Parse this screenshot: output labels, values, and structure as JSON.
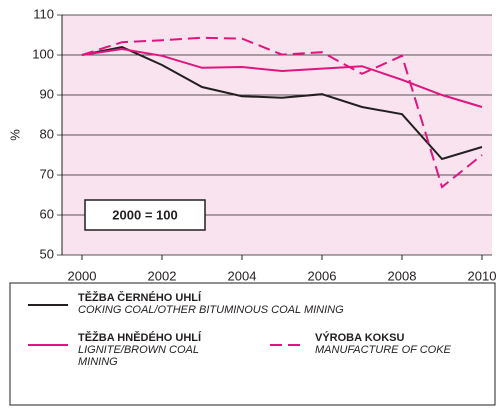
{
  "chart_data": {
    "type": "line",
    "y_label": "%",
    "annotation": "2000 = 100",
    "x": [
      2000,
      2001,
      2002,
      2003,
      2004,
      2005,
      2006,
      2007,
      2008,
      2009,
      2010
    ],
    "xlim": [
      2000,
      2010
    ],
    "xticks": [
      2000,
      2002,
      2004,
      2006,
      2008,
      2010
    ],
    "ylim": [
      50,
      110
    ],
    "yticks": [
      50,
      60,
      70,
      80,
      90,
      100,
      110
    ],
    "grid": true,
    "background": "#f9e3ee",
    "series": [
      {
        "name": "TĚŽBA ČERNÉHO UHLÍ",
        "name_en": "COKING COAL/OTHER BITUMINOUS COAL MINING",
        "color": "#231f20",
        "dash": false,
        "values": [
          100,
          102,
          97.5,
          92,
          89.7,
          89.3,
          90.2,
          87,
          85.2,
          74,
          77
        ]
      },
      {
        "name": "TĚŽBA HNĚDÉHO UHLÍ",
        "name_en": "LIGNITE/BROWN COAL MINING",
        "color": "#e0157f",
        "dash": false,
        "values": [
          100,
          101.5,
          99.8,
          96.8,
          97,
          96,
          96.6,
          97.2,
          93.8,
          90,
          87
        ]
      },
      {
        "name": "VÝROBA KOKSU",
        "name_en": "MANUFACTURE OF COKE",
        "color": "#e0157f",
        "dash": true,
        "values": [
          100,
          103.2,
          103.7,
          104.3,
          104.1,
          100.1,
          100.7,
          95.3,
          99.8,
          67,
          75
        ]
      }
    ]
  }
}
